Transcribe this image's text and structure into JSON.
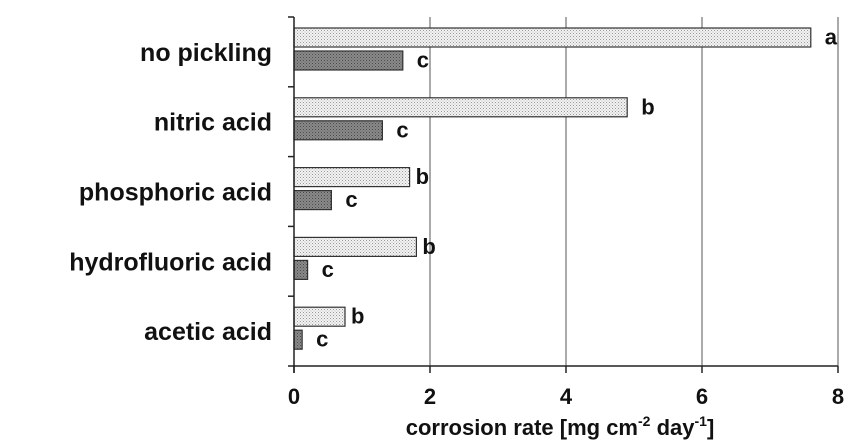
{
  "chart_data": {
    "type": "bar",
    "orientation": "horizontal",
    "categories": [
      "no pickling",
      "nitric acid",
      "phosphoric acid",
      "hydrofluoric acid",
      "acetic acid"
    ],
    "series": [
      {
        "values": [
          7.6,
          4.9,
          1.7,
          1.8,
          0.75
        ],
        "labels": [
          "a",
          "b",
          "b",
          "b",
          "b"
        ],
        "fill": "#cfcfcf"
      },
      {
        "values": [
          1.6,
          1.3,
          0.55,
          0.2,
          0.12
        ],
        "labels": [
          "c",
          "c",
          "c",
          "c",
          "c"
        ],
        "fill": "#8a8a8a"
      }
    ],
    "xlabel": {
      "base": "corrosion rate [mg cm",
      "sup1": "-2",
      "mid": " day",
      "sup2": "-1",
      "end": "]"
    },
    "ylabel": "",
    "xlim": [
      0,
      8
    ],
    "xticks": [
      0,
      2,
      4,
      6,
      8
    ],
    "grid": "vertical"
  }
}
